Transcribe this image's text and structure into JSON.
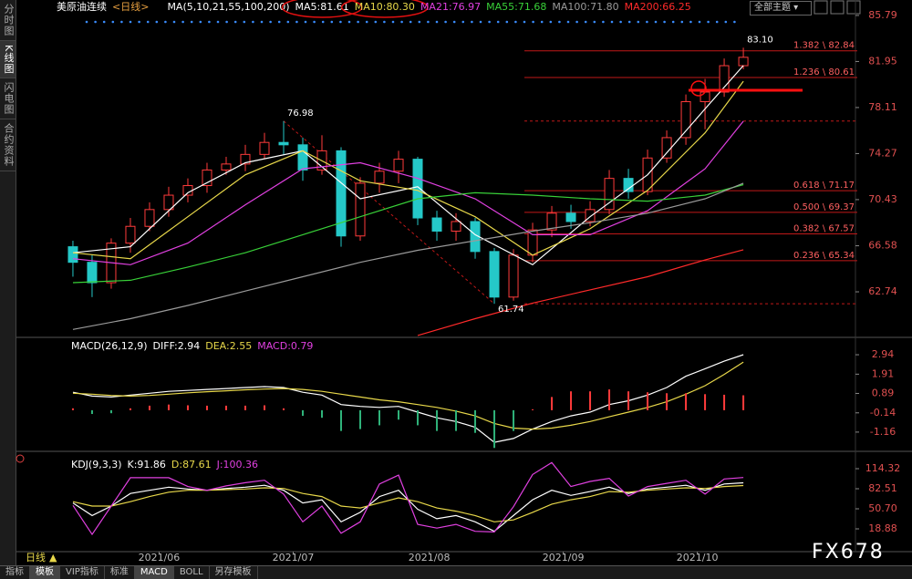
{
  "sidebar": [
    "分时图",
    "K线图",
    "闪电图",
    "合约资料"
  ],
  "toolbar": {
    "theme": "全部主题",
    "period": "日线",
    "tabs": [
      "指标",
      "模板",
      "VIP指标",
      "标准",
      "MACD",
      "BOLL",
      "另存模板"
    ]
  },
  "watermark": "FX678",
  "chart_data": [
    {
      "type": "candlestick",
      "title": "美原油连续",
      "period": "<日线>",
      "indicator": "MA(5,10,21,55,100,200)",
      "xlim": [
        -2.95,
        40.71
      ],
      "xticks": [
        {
          "value": 4.5,
          "label": "2021/06"
        },
        {
          "value": 11.5,
          "label": "2021/07"
        },
        {
          "value": 18.6,
          "label": "2021/08"
        },
        {
          "value": 25.6,
          "label": "2021/09"
        },
        {
          "value": 32.6,
          "label": "2021/10"
        }
      ],
      "ylim": [
        58.94,
        86.47
      ],
      "yticks": [
        85.79,
        81.95,
        78.11,
        74.27,
        70.43,
        66.58,
        62.74
      ],
      "up_color": "#ff3b3b",
      "down_color": "#25c8c8",
      "open": [
        66.5,
        65.2,
        63.5,
        66.8,
        68.2,
        69.6,
        70.8,
        71.6,
        72.9,
        73.4,
        74.2,
        75.2,
        75.0,
        72.9,
        74.5,
        67.4,
        71.8,
        72.8,
        73.8,
        68.9,
        67.8,
        68.6,
        66.1,
        62.3,
        65.8,
        67.9,
        69.3,
        68.6,
        69.6,
        72.2,
        71.1,
        73.9,
        75.6,
        78.6,
        79.4,
        81.6
      ],
      "close": [
        65.2,
        63.5,
        66.8,
        68.2,
        69.6,
        70.8,
        71.6,
        72.9,
        73.4,
        74.2,
        75.2,
        75.0,
        72.9,
        74.5,
        67.4,
        71.8,
        72.8,
        73.8,
        68.9,
        67.8,
        68.6,
        66.1,
        62.3,
        65.8,
        67.9,
        69.3,
        68.6,
        69.6,
        72.2,
        71.1,
        73.9,
        75.6,
        78.6,
        79.4,
        81.6,
        82.3
      ],
      "high": [
        67.0,
        65.8,
        67.2,
        68.9,
        70.2,
        71.5,
        72.2,
        73.5,
        74.0,
        75.0,
        76.0,
        76.98,
        75.6,
        75.8,
        74.8,
        72.3,
        73.5,
        74.5,
        74.0,
        69.5,
        69.3,
        68.9,
        66.4,
        66.3,
        68.5,
        69.9,
        70.0,
        70.3,
        72.9,
        73.0,
        74.6,
        76.2,
        79.2,
        80.5,
        82.2,
        83.1
      ],
      "low": [
        64.0,
        62.3,
        63.0,
        66.0,
        67.8,
        69.0,
        70.2,
        71.0,
        72.5,
        72.8,
        73.8,
        74.2,
        72.0,
        72.5,
        66.5,
        67.0,
        71.0,
        71.8,
        68.3,
        67.0,
        67.0,
        65.5,
        61.74,
        62.0,
        65.2,
        67.3,
        68.0,
        68.2,
        69.2,
        70.5,
        70.8,
        73.5,
        75.0,
        76.3,
        79.0,
        81.3
      ],
      "series": [
        {
          "name": "MA5:81.61",
          "color": "#ffffff",
          "x": [
            0,
            3,
            6,
            9,
            12,
            15,
            18,
            21,
            24,
            27,
            30,
            33,
            35
          ],
          "values": [
            66,
            66.5,
            71,
            73.5,
            74.5,
            70.5,
            71.5,
            67.5,
            65,
            69,
            72.5,
            78,
            81.61
          ]
        },
        {
          "name": "MA10:80.30",
          "color": "#e8d84a",
          "x": [
            0,
            3,
            6,
            9,
            12,
            15,
            18,
            21,
            24,
            27,
            30,
            33,
            35
          ],
          "values": [
            66,
            65.5,
            69,
            72.5,
            74.5,
            72,
            71.2,
            69,
            65.8,
            68,
            71.2,
            76,
            80.3
          ]
        },
        {
          "name": "MA21:76.97",
          "color": "#e040e0",
          "x": [
            0,
            3,
            6,
            9,
            12,
            15,
            18,
            21,
            24,
            27,
            30,
            33,
            35
          ],
          "values": [
            65.5,
            65,
            66.8,
            70,
            73,
            73.5,
            72.2,
            70.5,
            67.5,
            67.5,
            69.5,
            73,
            76.97
          ]
        },
        {
          "name": "MA55:71.68",
          "color": "#38d038",
          "x": [
            0,
            3,
            6,
            9,
            12,
            15,
            18,
            21,
            24,
            27,
            30,
            33,
            35
          ],
          "values": [
            63.5,
            63.7,
            64.8,
            66,
            67.5,
            69,
            70.5,
            71,
            70.8,
            70.5,
            70.3,
            70.8,
            71.68
          ]
        },
        {
          "name": "MA100:71.80",
          "color": "#9a9a9a",
          "x": [
            0,
            3,
            6,
            9,
            12,
            15,
            18,
            21,
            24,
            27,
            30,
            33,
            35
          ],
          "values": [
            59.6,
            60.5,
            61.6,
            62.8,
            64,
            65.2,
            66.2,
            67,
            67.8,
            68.5,
            69.3,
            70.5,
            71.8
          ]
        },
        {
          "name": "MA200:66.25",
          "color": "#ff2a2a",
          "x": [
            18,
            21,
            24,
            27,
            30,
            33,
            35
          ],
          "values": [
            59.1,
            60.5,
            61.8,
            62.9,
            64.0,
            65.4,
            66.25
          ]
        }
      ],
      "fib_levels": [
        {
          "label": "1.382 \\ 82.84",
          "value": 82.84
        },
        {
          "label": "1.236 \\ 80.61",
          "value": 80.61
        },
        {
          "label": "0.618 \\ 71.17",
          "value": 71.17
        },
        {
          "label": "0.500 \\ 69.37",
          "value": 69.37
        },
        {
          "label": "0.382 \\ 67.57",
          "value": 67.57
        },
        {
          "label": "0.236 \\ 65.34",
          "value": 65.34
        }
      ],
      "annotations": [
        {
          "x": 11,
          "value": 76.98
        },
        {
          "x": 22,
          "value": 61.74
        },
        {
          "x": 35,
          "value": 83.1,
          "label": "83.10"
        }
      ]
    },
    {
      "type": "line",
      "title": "MACD(26,12,9)",
      "xlim": [
        -2.95,
        40.71
      ],
      "ylim": [
        -2.18,
        3.86
      ],
      "yticks": [
        2.94,
        1.91,
        0.89,
        -0.14,
        -1.16
      ],
      "series": [
        {
          "name": "DIFF:2.94",
          "color": "#ffffff",
          "values": [
            0.95,
            0.75,
            0.7,
            0.8,
            0.9,
            1.0,
            1.05,
            1.1,
            1.15,
            1.2,
            1.25,
            1.2,
            0.95,
            0.8,
            0.3,
            0.2,
            0.15,
            0.2,
            -0.1,
            -0.4,
            -0.6,
            -0.9,
            -1.7,
            -1.5,
            -1.0,
            -0.6,
            -0.3,
            -0.1,
            0.3,
            0.5,
            0.8,
            1.2,
            1.8,
            2.2,
            2.6,
            2.94
          ]
        },
        {
          "name": "DEA:2.55",
          "color": "#e8d84a",
          "values": [
            0.9,
            0.85,
            0.78,
            0.75,
            0.78,
            0.85,
            0.92,
            0.98,
            1.03,
            1.08,
            1.12,
            1.15,
            1.1,
            1.0,
            0.85,
            0.7,
            0.55,
            0.45,
            0.3,
            0.15,
            -0.05,
            -0.3,
            -0.7,
            -0.95,
            -1.0,
            -0.95,
            -0.8,
            -0.6,
            -0.35,
            -0.1,
            0.15,
            0.45,
            0.85,
            1.3,
            1.9,
            2.55
          ]
        },
        {
          "name": "MACD:0.79",
          "kind": "bar",
          "color": "#ff3b3b",
          "neg_color": "#2fb37a",
          "legend_color": "#e040e0",
          "values": [
            0.1,
            -0.2,
            -0.16,
            0.1,
            0.24,
            0.3,
            0.26,
            0.24,
            0.24,
            0.24,
            0.26,
            0.1,
            -0.3,
            -0.4,
            -1.1,
            -1.0,
            -0.8,
            -0.5,
            -0.8,
            -1.1,
            -1.1,
            -1.2,
            -2.0,
            -1.1,
            0.05,
            0.7,
            1.0,
            1.0,
            1.1,
            1.0,
            0.95,
            0.9,
            0.9,
            0.85,
            0.82,
            0.79
          ]
        }
      ]
    },
    {
      "type": "line",
      "title": "KDJ(9,3,3)",
      "xlim": [
        -2.95,
        40.71
      ],
      "ylim": [
        -17.27,
        134.56
      ],
      "yticks": [
        114.32,
        82.51,
        {
          "value": 50.7,
          "label": "50.70"
        },
        18.88
      ],
      "series": [
        {
          "name": "K:91.86",
          "color": "#ffffff",
          "values": [
            60,
            40,
            55,
            75,
            80,
            85,
            82,
            80,
            83,
            85,
            88,
            80,
            60,
            65,
            30,
            45,
            70,
            80,
            50,
            35,
            40,
            30,
            15,
            40,
            65,
            80,
            72,
            78,
            85,
            75,
            82,
            85,
            88,
            80,
            90,
            91.86
          ]
        },
        {
          "name": "D:87.61",
          "color": "#e8d84a",
          "values": [
            62,
            55,
            55,
            62,
            70,
            77,
            80,
            80,
            81,
            82,
            84,
            83,
            75,
            70,
            55,
            52,
            60,
            68,
            62,
            52,
            47,
            40,
            30,
            33,
            45,
            58,
            65,
            70,
            78,
            77,
            80,
            82,
            84,
            83,
            86,
            87.61
          ]
        },
        {
          "name": "J:100.36",
          "color": "#e040e0",
          "values": [
            56,
            10,
            55,
            100,
            100,
            100,
            86,
            80,
            87,
            92,
            96,
            74,
            30,
            55,
            12,
            30,
            90,
            104,
            26,
            20,
            26,
            15,
            14,
            54,
            105,
            124,
            86,
            94,
            99,
            71,
            86,
            91,
            96,
            74,
            98,
            100.36
          ]
        }
      ]
    }
  ]
}
